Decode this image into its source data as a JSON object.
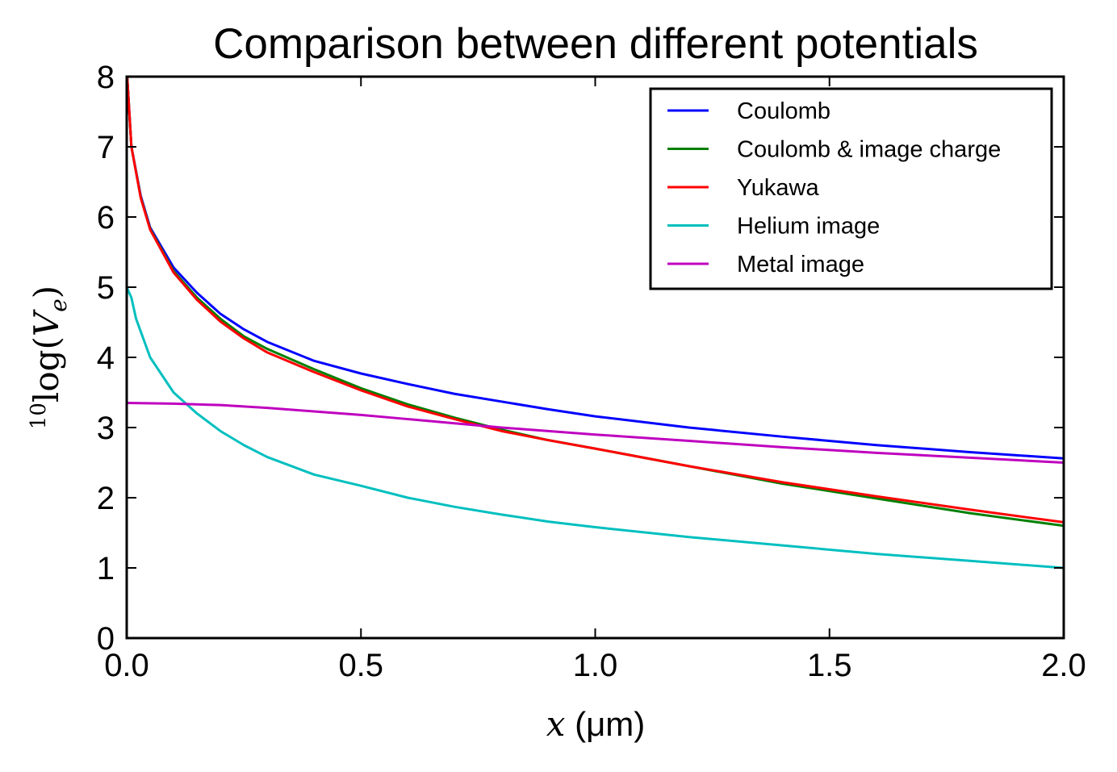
{
  "chart_data": {
    "type": "line",
    "title": "Comparison between different potentials",
    "xlabel": "x (μm)",
    "ylabel": "10log(V_e)",
    "xlim": [
      0,
      2
    ],
    "ylim": [
      0,
      8
    ],
    "xticks": [
      "0.0",
      "0.5",
      "1.0",
      "1.5",
      "2.0"
    ],
    "yticks": [
      "0",
      "1",
      "2",
      "3",
      "4",
      "5",
      "6",
      "7",
      "8"
    ],
    "grid": false,
    "legend_position": "top-right",
    "series": [
      {
        "name": "Coulomb",
        "color": "#0000ff",
        "points": [
          [
            0.001,
            8.0
          ],
          [
            0.01,
            7.0
          ],
          [
            0.03,
            6.3
          ],
          [
            0.05,
            5.85
          ],
          [
            0.1,
            5.28
          ],
          [
            0.15,
            4.92
          ],
          [
            0.2,
            4.62
          ],
          [
            0.25,
            4.4
          ],
          [
            0.3,
            4.22
          ],
          [
            0.4,
            3.95
          ],
          [
            0.5,
            3.77
          ],
          [
            0.6,
            3.62
          ],
          [
            0.7,
            3.48
          ],
          [
            0.8,
            3.37
          ],
          [
            0.9,
            3.26
          ],
          [
            1.0,
            3.16
          ],
          [
            1.2,
            3.0
          ],
          [
            1.4,
            2.87
          ],
          [
            1.6,
            2.75
          ],
          [
            1.8,
            2.65
          ],
          [
            2.0,
            2.56
          ]
        ]
      },
      {
        "name": "Coulomb & image charge",
        "color": "#008000",
        "points": [
          [
            0.001,
            8.0
          ],
          [
            0.01,
            7.0
          ],
          [
            0.03,
            6.28
          ],
          [
            0.05,
            5.83
          ],
          [
            0.1,
            5.23
          ],
          [
            0.15,
            4.85
          ],
          [
            0.2,
            4.55
          ],
          [
            0.25,
            4.3
          ],
          [
            0.3,
            4.12
          ],
          [
            0.4,
            3.83
          ],
          [
            0.5,
            3.56
          ],
          [
            0.6,
            3.33
          ],
          [
            0.7,
            3.14
          ],
          [
            0.8,
            2.97
          ],
          [
            0.9,
            2.82
          ],
          [
            1.0,
            2.7
          ],
          [
            1.2,
            2.45
          ],
          [
            1.4,
            2.2
          ],
          [
            1.6,
            1.99
          ],
          [
            1.8,
            1.78
          ],
          [
            2.0,
            1.6
          ]
        ]
      },
      {
        "name": "Yukawa",
        "color": "#ff0000",
        "points": [
          [
            0.001,
            8.0
          ],
          [
            0.01,
            7.0
          ],
          [
            0.03,
            6.27
          ],
          [
            0.05,
            5.82
          ],
          [
            0.1,
            5.21
          ],
          [
            0.15,
            4.82
          ],
          [
            0.2,
            4.51
          ],
          [
            0.25,
            4.27
          ],
          [
            0.3,
            4.07
          ],
          [
            0.4,
            3.79
          ],
          [
            0.5,
            3.53
          ],
          [
            0.6,
            3.3
          ],
          [
            0.7,
            3.12
          ],
          [
            0.8,
            2.95
          ],
          [
            0.9,
            2.82
          ],
          [
            1.0,
            2.7
          ],
          [
            1.2,
            2.45
          ],
          [
            1.4,
            2.22
          ],
          [
            1.6,
            2.02
          ],
          [
            1.8,
            1.83
          ],
          [
            2.0,
            1.65
          ]
        ]
      },
      {
        "name": "Helium image",
        "color": "#00bfbf",
        "points": [
          [
            0.0,
            5.0
          ],
          [
            0.01,
            4.85
          ],
          [
            0.02,
            4.55
          ],
          [
            0.05,
            4.0
          ],
          [
            0.1,
            3.5
          ],
          [
            0.15,
            3.2
          ],
          [
            0.2,
            2.95
          ],
          [
            0.25,
            2.75
          ],
          [
            0.3,
            2.58
          ],
          [
            0.4,
            2.33
          ],
          [
            0.5,
            2.17
          ],
          [
            0.6,
            2.0
          ],
          [
            0.7,
            1.87
          ],
          [
            0.8,
            1.76
          ],
          [
            0.9,
            1.66
          ],
          [
            1.0,
            1.58
          ],
          [
            1.2,
            1.44
          ],
          [
            1.4,
            1.32
          ],
          [
            1.6,
            1.2
          ],
          [
            1.8,
            1.1
          ],
          [
            2.0,
            1.0
          ]
        ]
      },
      {
        "name": "Metal image",
        "color": "#bf00bf",
        "points": [
          [
            0.0,
            3.35
          ],
          [
            0.1,
            3.34
          ],
          [
            0.2,
            3.32
          ],
          [
            0.3,
            3.28
          ],
          [
            0.4,
            3.23
          ],
          [
            0.5,
            3.18
          ],
          [
            0.6,
            3.12
          ],
          [
            0.7,
            3.06
          ],
          [
            0.8,
            3.0
          ],
          [
            0.9,
            2.95
          ],
          [
            1.0,
            2.9
          ],
          [
            1.2,
            2.81
          ],
          [
            1.4,
            2.72
          ],
          [
            1.6,
            2.64
          ],
          [
            1.8,
            2.57
          ],
          [
            2.0,
            2.5
          ]
        ]
      }
    ]
  }
}
